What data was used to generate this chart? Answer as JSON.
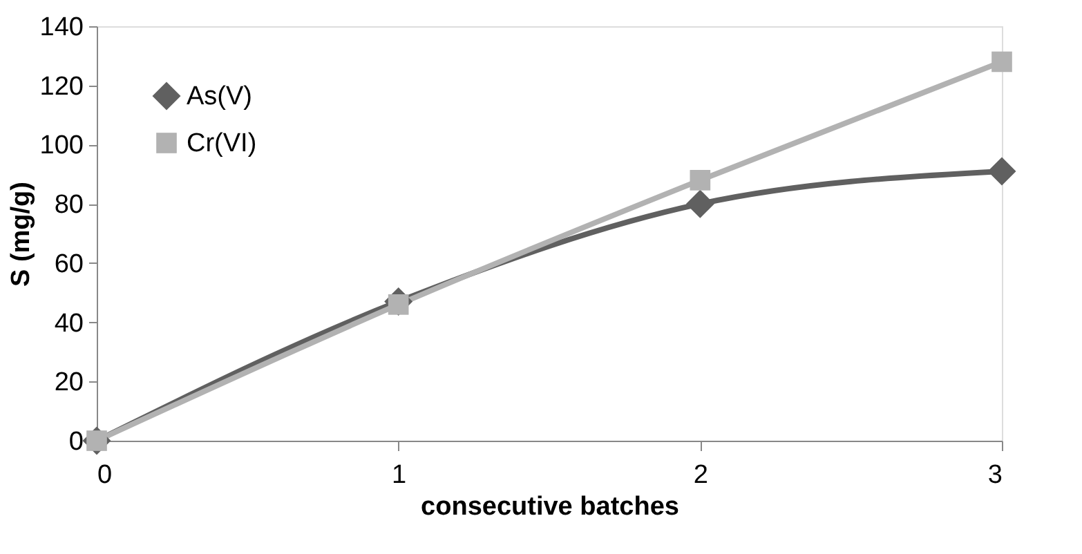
{
  "chart_data": {
    "type": "line",
    "xlabel": "consecutive batches",
    "ylabel": "S (mg/g)",
    "x": [
      0,
      1,
      2,
      3
    ],
    "series": [
      {
        "name": "As(V)",
        "color": "#606060",
        "marker": "diamond",
        "values": [
          0,
          47,
          80,
          91
        ]
      },
      {
        "name": "Cr(VI)",
        "color": "#b2b2b2",
        "marker": "square",
        "values": [
          0,
          46,
          88,
          128
        ]
      }
    ],
    "xlim": [
      0,
      3
    ],
    "xticks": [
      0,
      1,
      2,
      3
    ],
    "ylim": [
      0,
      140
    ],
    "yticks": [
      0,
      20,
      40,
      60,
      80,
      100,
      120,
      140
    ],
    "grid": false,
    "legend": "top left",
    "line_style": "solid"
  }
}
